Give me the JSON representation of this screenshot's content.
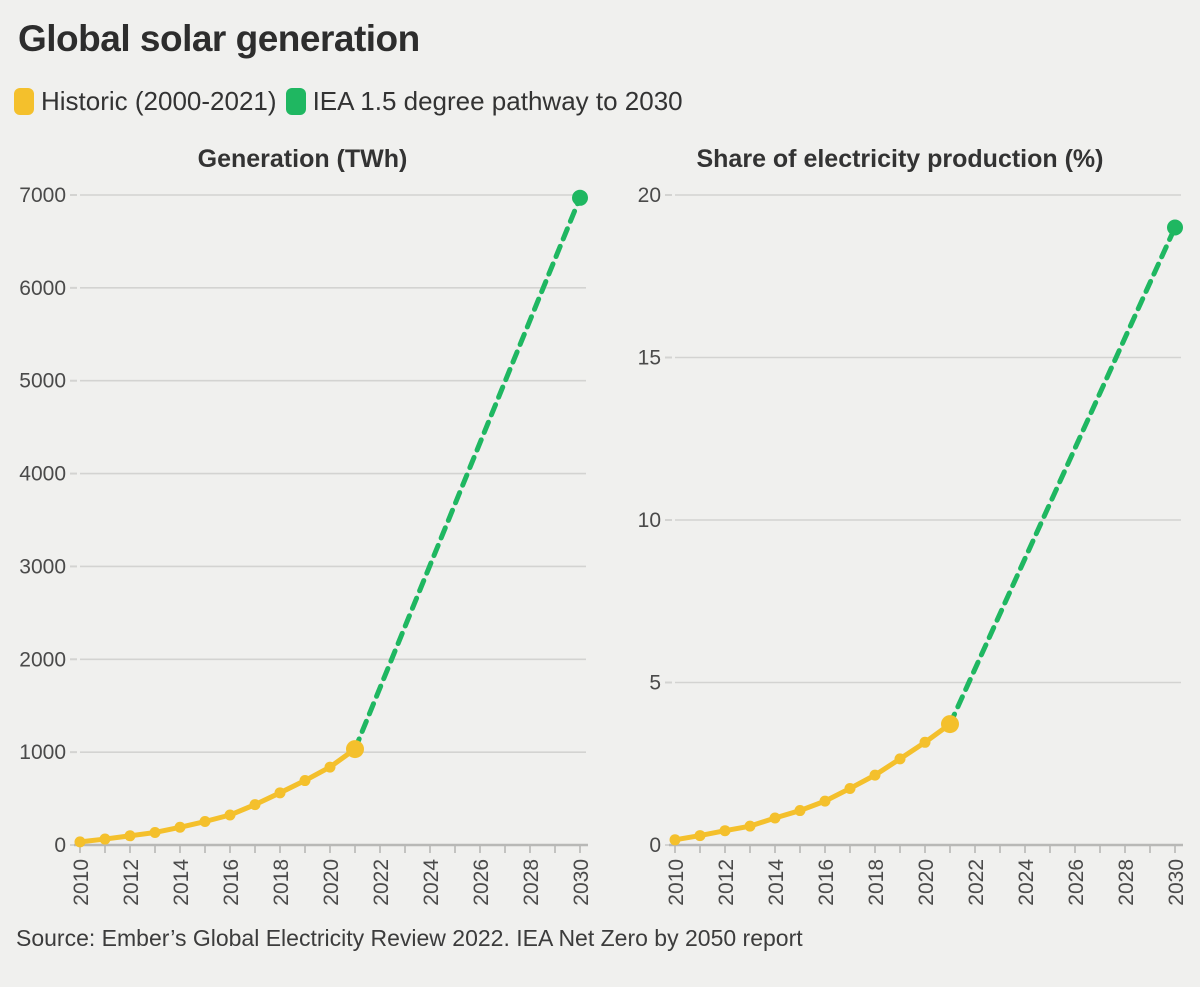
{
  "title": "Global solar generation",
  "legend": {
    "historic": {
      "label": "Historic (2000-2021)",
      "color": "#F4C02C"
    },
    "pathway": {
      "label": "IEA 1.5 degree pathway to 2030",
      "color": "#1FB761"
    }
  },
  "source": "Source: Ember’s Global Electricity Review 2022. IEA Net Zero by 2050 report",
  "colors": {
    "background": "#f0f0ee",
    "gridline": "#d3d3d1",
    "axis": "#b8b8b6",
    "axis_text": "#4a4a4a",
    "title_text": "#2d2d2d"
  },
  "chart_data": [
    {
      "type": "line",
      "title": "Generation (TWh)",
      "xlabel": "",
      "ylabel": "TWh",
      "xlim": [
        2010,
        2030
      ],
      "ylim": [
        0,
        7000
      ],
      "yticks": [
        0,
        1000,
        2000,
        3000,
        4000,
        5000,
        6000,
        7000
      ],
      "xtick_minor_step": 1,
      "xtick_labels": [
        2010,
        2012,
        2014,
        2016,
        2018,
        2020,
        2022,
        2024,
        2026,
        2028,
        2030
      ],
      "grid": true,
      "legend_position": "top-left",
      "series": [
        {
          "name": "Historic (2000-2021)",
          "color": "#F4C02C",
          "dash": false,
          "x": [
            2010,
            2011,
            2012,
            2013,
            2014,
            2015,
            2016,
            2017,
            2018,
            2019,
            2020,
            2021
          ],
          "values": [
            34,
            64,
            99,
            135,
            191,
            253,
            323,
            435,
            562,
            694,
            839,
            1033
          ],
          "points": "all",
          "point_radius": 5.5,
          "end_point_radius": 9
        },
        {
          "name": "IEA 1.5 degree pathway to 2030",
          "color": "#1FB761",
          "dash": true,
          "x": [
            2021,
            2030
          ],
          "values": [
            1033,
            6970
          ],
          "points": "last",
          "point_radius": 5.5,
          "end_point_radius": 8
        }
      ]
    },
    {
      "type": "line",
      "title": "Share of electricity production (%)",
      "xlabel": "",
      "ylabel": "%",
      "xlim": [
        2010,
        2030
      ],
      "ylim": [
        0,
        20
      ],
      "yticks": [
        0,
        5,
        10,
        15,
        20
      ],
      "xtick_minor_step": 1,
      "xtick_labels": [
        2010,
        2012,
        2014,
        2016,
        2018,
        2020,
        2022,
        2024,
        2026,
        2028,
        2030
      ],
      "grid": true,
      "legend_position": "top-left",
      "series": [
        {
          "name": "Historic (2000-2021)",
          "color": "#F4C02C",
          "dash": false,
          "x": [
            2010,
            2011,
            2012,
            2013,
            2014,
            2015,
            2016,
            2017,
            2018,
            2019,
            2020,
            2021
          ],
          "values": [
            0.16,
            0.29,
            0.44,
            0.58,
            0.83,
            1.06,
            1.35,
            1.74,
            2.15,
            2.65,
            3.16,
            3.72
          ],
          "points": "all",
          "point_radius": 5.5,
          "end_point_radius": 9
        },
        {
          "name": "IEA 1.5 degree pathway to 2030",
          "color": "#1FB761",
          "dash": true,
          "x": [
            2021,
            2030
          ],
          "values": [
            3.72,
            19.0
          ],
          "points": "last",
          "point_radius": 5.5,
          "end_point_radius": 8
        }
      ]
    }
  ]
}
